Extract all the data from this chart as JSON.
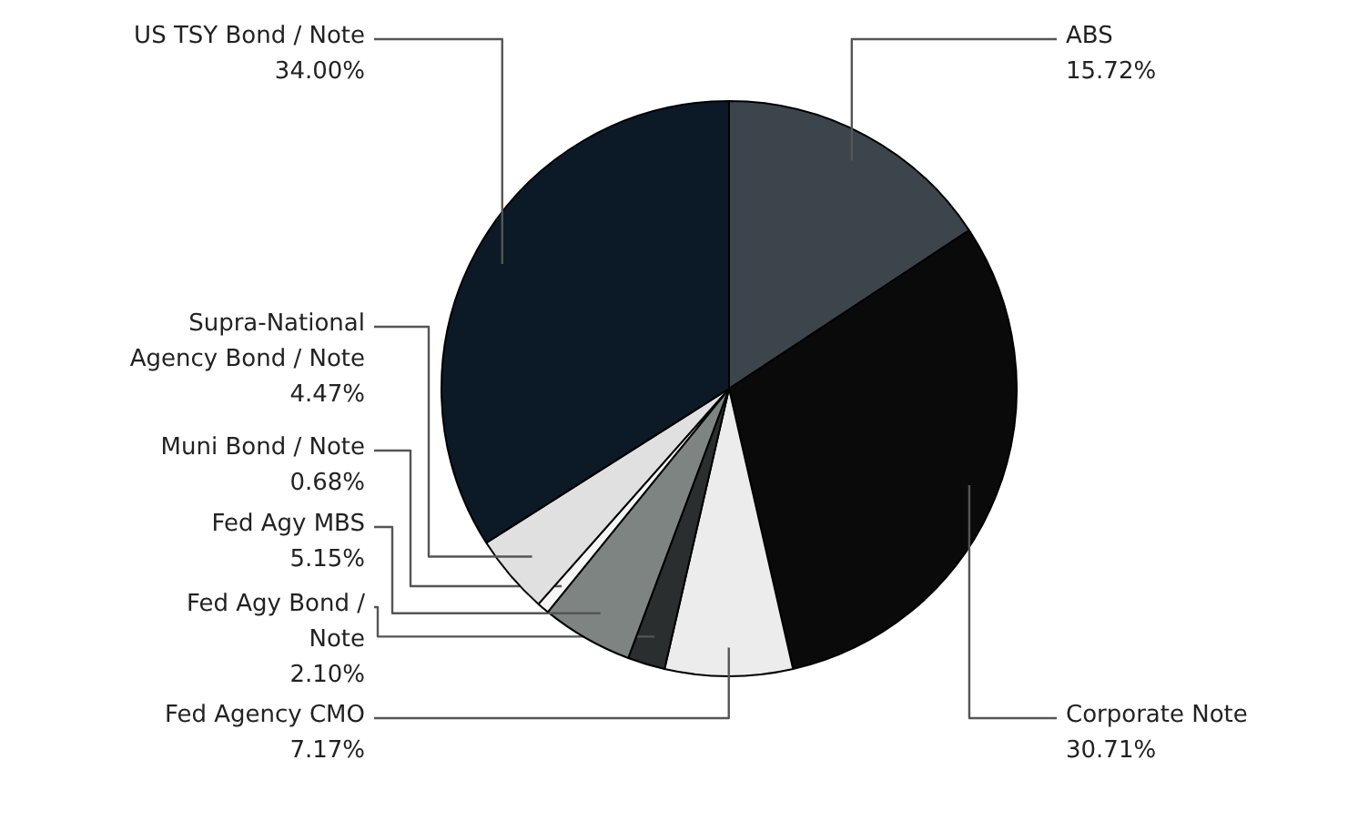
{
  "chart_data": {
    "type": "pie",
    "categories": [
      "ABS",
      "Corporate Note",
      "Fed Agency CMO",
      "Fed Agy Bond / Note",
      "Fed Agy MBS",
      "Muni Bond / Note",
      "Supra-National Agency Bond / Note",
      "US TSY Bond / Note"
    ],
    "values": [
      15.72,
      30.71,
      7.17,
      2.1,
      5.15,
      0.68,
      4.47,
      34.0
    ],
    "value_labels": [
      "15.72%",
      "30.71%",
      "7.17%",
      "2.10%",
      "5.15%",
      "0.68%",
      "4.47%",
      "34.00%"
    ],
    "colors": [
      "#3c444c",
      "#0a0a0a",
      "#ececec",
      "#2a2e2e",
      "#7e8482",
      "#f5f5f5",
      "#e0e0e0",
      "#0b1a26"
    ]
  }
}
